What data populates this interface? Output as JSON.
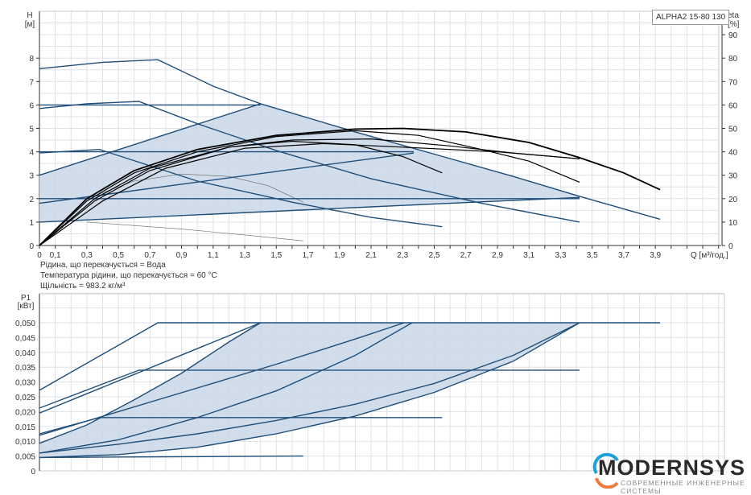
{
  "chart_data": [
    {
      "type": "line",
      "title": "",
      "legend_label": "ALPHA2 15-80 130",
      "ylabel_left": "H\n[м]",
      "ylabel_left_lines": [
        "H",
        "[м]"
      ],
      "ylabel_right_lines": [
        "eta",
        "[%]"
      ],
      "xlabel": "Q [м³/год.]",
      "xlim": [
        0,
        4.3
      ],
      "ylim": [
        0,
        9
      ],
      "ylim_right": [
        0,
        90
      ],
      "x_ticks": [
        "0",
        "0,1",
        "0,3",
        "0,5",
        "0,7",
        "0,9",
        "1,1",
        "1,3",
        "1,5",
        "1,7",
        "1,9",
        "2,1",
        "2,3",
        "2,5",
        "2,7",
        "2,9",
        "3,1",
        "3,3",
        "3,5",
        "3,7",
        "3,9"
      ],
      "y_ticks": [
        "0",
        "1",
        "2",
        "3",
        "4",
        "5",
        "6",
        "7",
        "8"
      ],
      "y_ticks_right": [
        "0",
        "10",
        "20",
        "30",
        "40",
        "50",
        "60",
        "70",
        "80",
        "90"
      ],
      "grid": true,
      "colors": {
        "pump_curves": "#1f4e79",
        "efficiency_curves": "#000000",
        "area_fill": "#c9d7e6",
        "thin_curves": "#666666"
      },
      "head_curves": [
        {
          "points": [
            [
              0,
              7.55
            ],
            [
              0.4,
              7.82
            ],
            [
              0.75,
              7.93
            ],
            [
              0.9,
              7.45
            ],
            [
              1.1,
              6.8
            ],
            [
              1.4,
              6.05
            ],
            [
              2.0,
              4.85
            ],
            [
              2.5,
              3.9
            ],
            [
              3.0,
              2.95
            ],
            [
              3.42,
              2.1
            ],
            [
              3.93,
              1.12
            ]
          ]
        },
        {
          "points": [
            [
              0,
              5.85
            ],
            [
              0.3,
              6.05
            ],
            [
              0.63,
              6.15
            ],
            [
              1.0,
              5.2
            ],
            [
              1.5,
              4.05
            ],
            [
              2.1,
              2.85
            ],
            [
              2.8,
              1.8
            ],
            [
              3.42,
              1.0
            ]
          ]
        },
        {
          "points": [
            [
              0,
              3.95
            ],
            [
              0.38,
              4.1
            ],
            [
              1.0,
              2.75
            ],
            [
              1.6,
              1.85
            ],
            [
              2.1,
              1.2
            ],
            [
              2.55,
              0.8
            ]
          ]
        },
        {
          "points": [
            [
              0,
              6.0
            ],
            [
              1.4,
              6.0
            ]
          ]
        },
        {
          "points": [
            [
              0,
              4.0
            ],
            [
              2.37,
              4.0
            ]
          ]
        },
        {
          "points": [
            [
              0,
              2.0
            ],
            [
              3.42,
              2.0
            ]
          ]
        },
        {
          "points": [
            [
              0,
              3.0
            ],
            [
              1.4,
              6.05
            ]
          ]
        },
        {
          "points": [
            [
              0,
              1.8
            ],
            [
              2.37,
              3.95
            ]
          ]
        },
        {
          "points": [
            [
              0,
              1.0
            ],
            [
              2.1,
              1.65
            ],
            [
              3.42,
              2.05
            ]
          ]
        }
      ],
      "thin_curves": [
        {
          "points": [
            [
              0.3,
              1.0
            ],
            [
              0.9,
              0.7
            ],
            [
              1.3,
              0.45
            ],
            [
              1.67,
              0.2
            ]
          ]
        },
        {
          "points": [
            [
              0.3,
              2.0
            ],
            [
              0.6,
              2.75
            ],
            [
              0.9,
              3.05
            ],
            [
              1.2,
              2.95
            ],
            [
              1.45,
              2.55
            ],
            [
              1.67,
              1.85
            ]
          ]
        }
      ],
      "efficiency_curves_percent": [
        {
          "points": [
            [
              0,
              0
            ],
            [
              0.3,
              20
            ],
            [
              0.6,
              32
            ],
            [
              1.0,
              41
            ],
            [
              1.5,
              47
            ],
            [
              2.0,
              49.7
            ],
            [
              2.3,
              50
            ],
            [
              2.7,
              48.5
            ],
            [
              3.1,
              44
            ],
            [
              3.42,
              37.5
            ],
            [
              3.7,
              31
            ],
            [
              3.93,
              23.8
            ]
          ]
        },
        {
          "points": [
            [
              0,
              0
            ],
            [
              0.3,
              19
            ],
            [
              0.6,
              31
            ],
            [
              1.0,
              40
            ],
            [
              1.5,
              46.5
            ],
            [
              2.0,
              49
            ],
            [
              2.4,
              47
            ],
            [
              2.8,
              41
            ],
            [
              3.1,
              36
            ],
            [
              3.42,
              27
            ]
          ]
        },
        {
          "points": [
            [
              0,
              0
            ],
            [
              0.35,
              20
            ],
            [
              0.7,
              33
            ],
            [
              1.2,
              42
            ],
            [
              1.6,
              45
            ],
            [
              2.1,
              45.5
            ],
            [
              2.6,
              42.5
            ],
            [
              3.0,
              39.5
            ],
            [
              3.42,
              37
            ]
          ]
        },
        {
          "points": [
            [
              0,
              0
            ],
            [
              0.35,
              19
            ],
            [
              0.7,
              32
            ],
            [
              1.2,
              42
            ],
            [
              1.6,
              44.5
            ],
            [
              2.0,
              43
            ],
            [
              2.3,
              38
            ],
            [
              2.55,
              31
            ]
          ]
        },
        {
          "points": [
            [
              0,
              0
            ],
            [
              0.4,
              19
            ],
            [
              0.8,
              33
            ],
            [
              1.3,
              41.5
            ],
            [
              1.8,
              43.5
            ],
            [
              2.3,
              42
            ],
            [
              2.9,
              40
            ],
            [
              3.42,
              37
            ]
          ]
        }
      ],
      "operating_area": [
        [
          0,
          1.0
        ],
        [
          0,
          3.0
        ],
        [
          1.4,
          6.05
        ],
        [
          2.0,
          4.85
        ],
        [
          2.5,
          3.9
        ],
        [
          3.0,
          2.95
        ],
        [
          3.42,
          2.1
        ],
        [
          3.42,
          2.05
        ],
        [
          2.1,
          1.65
        ],
        [
          0,
          1.0
        ]
      ]
    },
    {
      "type": "line",
      "ylabel_lines": [
        "P1",
        "[кВт]"
      ],
      "xlim": [
        0,
        4.3
      ],
      "ylim": [
        0,
        0.06
      ],
      "y_ticks": [
        "0",
        "0,005",
        "0,010",
        "0,015",
        "0,020",
        "0,025",
        "0,030",
        "0,035",
        "0,040",
        "0,045",
        "0,050"
      ],
      "grid": true,
      "power_curves": [
        {
          "points": [
            [
              0,
              0.0272
            ],
            [
              0.75,
              0.05
            ],
            [
              3.93,
              0.05
            ]
          ]
        },
        {
          "points": [
            [
              0,
              0.0212
            ],
            [
              0.63,
              0.034
            ],
            [
              3.42,
              0.034
            ]
          ]
        },
        {
          "points": [
            [
              0,
              0.0125
            ],
            [
              0.38,
              0.018
            ],
            [
              2.55,
              0.018
            ]
          ]
        },
        {
          "points": [
            [
              0,
              0.0045
            ],
            [
              1.67,
              0.005
            ]
          ]
        },
        {
          "points": [
            [
              0,
              0.0195
            ],
            [
              1.4,
              0.05
            ]
          ]
        },
        {
          "points": [
            [
              0,
              0.0093
            ],
            [
              0.3,
              0.0155
            ],
            [
              0.6,
              0.024
            ],
            [
              0.9,
              0.033
            ],
            [
              1.2,
              0.0435
            ],
            [
              1.4,
              0.05
            ]
          ]
        },
        {
          "points": [
            [
              0,
              0.012
            ],
            [
              0.5,
              0.02
            ],
            [
              1.0,
              0.028
            ],
            [
              1.5,
              0.036
            ],
            [
              2.0,
              0.0445
            ],
            [
              2.31,
              0.05
            ]
          ]
        },
        {
          "points": [
            [
              0,
              0.006
            ],
            [
              0.5,
              0.0105
            ],
            [
              1.0,
              0.018
            ],
            [
              1.5,
              0.027
            ],
            [
              2.0,
              0.039
            ],
            [
              2.36,
              0.05
            ]
          ]
        },
        {
          "points": [
            [
              0,
              0.006
            ],
            [
              0.5,
              0.009
            ],
            [
              1.0,
              0.0125
            ],
            [
              1.5,
              0.017
            ],
            [
              2.0,
              0.0225
            ],
            [
              2.5,
              0.0295
            ],
            [
              3.0,
              0.039
            ],
            [
              3.42,
              0.05
            ]
          ]
        },
        {
          "points": [
            [
              0,
              0.0045
            ],
            [
              0.5,
              0.0055
            ],
            [
              1.0,
              0.008
            ],
            [
              1.5,
              0.0125
            ],
            [
              2.0,
              0.0185
            ],
            [
              2.5,
              0.0265
            ],
            [
              3.0,
              0.037
            ],
            [
              3.42,
              0.05
            ]
          ]
        }
      ],
      "operating_area": [
        [
          0,
          0.0093
        ],
        [
          0.3,
          0.0155
        ],
        [
          0.6,
          0.024
        ],
        [
          0.9,
          0.033
        ],
        [
          1.2,
          0.0435
        ],
        [
          1.4,
          0.05
        ],
        [
          3.42,
          0.05
        ],
        [
          3.0,
          0.037
        ],
        [
          2.5,
          0.0265
        ],
        [
          2.0,
          0.0185
        ],
        [
          1.5,
          0.0125
        ],
        [
          1.0,
          0.008
        ],
        [
          0.5,
          0.0055
        ],
        [
          0,
          0.0045
        ]
      ]
    }
  ],
  "notes": [
    "Рідина, що перекачується = Вода",
    "Температура рідини, що перекачується = 60 °C",
    "Щільність = 983.2 кг/м³"
  ],
  "watermark": {
    "name": "MODERNSYS",
    "tagline": "СОВРЕМЕННЫЕ ИНЖЕНЕРНЫЕ СИСТЕМЫ",
    "colors": {
      "arc_top": "#1ea0dc",
      "arc_bottom": "#f07a3a"
    }
  }
}
